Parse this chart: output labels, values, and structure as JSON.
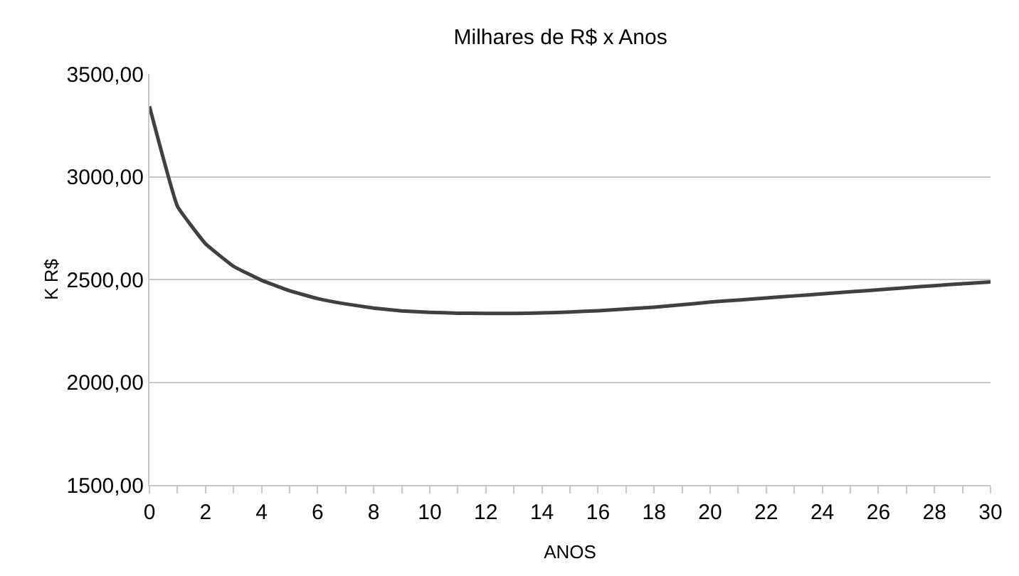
{
  "chart_data": {
    "type": "line",
    "title": "Milhares de R$ x Anos",
    "xlabel": "ANOS",
    "ylabel": "K R$",
    "x": [
      0,
      1,
      2,
      3,
      4,
      5,
      6,
      7,
      8,
      9,
      10,
      11,
      12,
      13,
      14,
      15,
      16,
      17,
      18,
      19,
      20,
      21,
      22,
      23,
      24,
      25,
      26,
      27,
      28,
      29,
      30
    ],
    "series": [
      {
        "color": "#404040",
        "values": [
          3343,
          2856,
          2674,
          2564,
          2496,
          2445,
          2407,
          2381,
          2361,
          2347,
          2340,
          2336,
          2335,
          2335,
          2337,
          2342,
          2348,
          2356,
          2365,
          2377,
          2390,
          2400,
          2410,
          2420,
          2430,
          2440,
          2450,
          2460,
          2470,
          2479,
          2488
        ]
      }
    ],
    "xlim": [
      0,
      30
    ],
    "xticks": [
      0,
      {
        "value": 1,
        "label": null
      },
      2,
      {
        "value": 3,
        "label": null
      },
      4,
      {
        "value": 5,
        "label": null
      },
      6,
      {
        "value": 7,
        "label": null
      },
      8,
      {
        "value": 9,
        "label": null
      },
      10,
      {
        "value": 11,
        "label": null
      },
      12,
      {
        "value": 13,
        "label": null
      },
      14,
      {
        "value": 15,
        "label": null
      },
      16,
      {
        "value": 17,
        "label": null
      },
      18,
      {
        "value": 19,
        "label": null
      },
      20,
      {
        "value": 21,
        "label": null
      },
      22,
      {
        "value": 23,
        "label": null
      },
      24,
      {
        "value": 25,
        "label": null
      },
      26,
      {
        "value": 27,
        "label": null
      },
      28,
      {
        "value": 29,
        "label": null
      },
      30
    ],
    "ylim": [
      1500,
      3500
    ],
    "yticks": [
      {
        "value": 1500,
        "label": "1500,00"
      },
      {
        "value": 2000,
        "label": "2000,00"
      },
      {
        "value": 2500,
        "label": "2500,00"
      },
      {
        "value": 3000,
        "label": "3000,00"
      },
      {
        "value": 3500,
        "label": "3500,00"
      }
    ],
    "grid": "y",
    "marker": "none",
    "line_style": "solid"
  }
}
